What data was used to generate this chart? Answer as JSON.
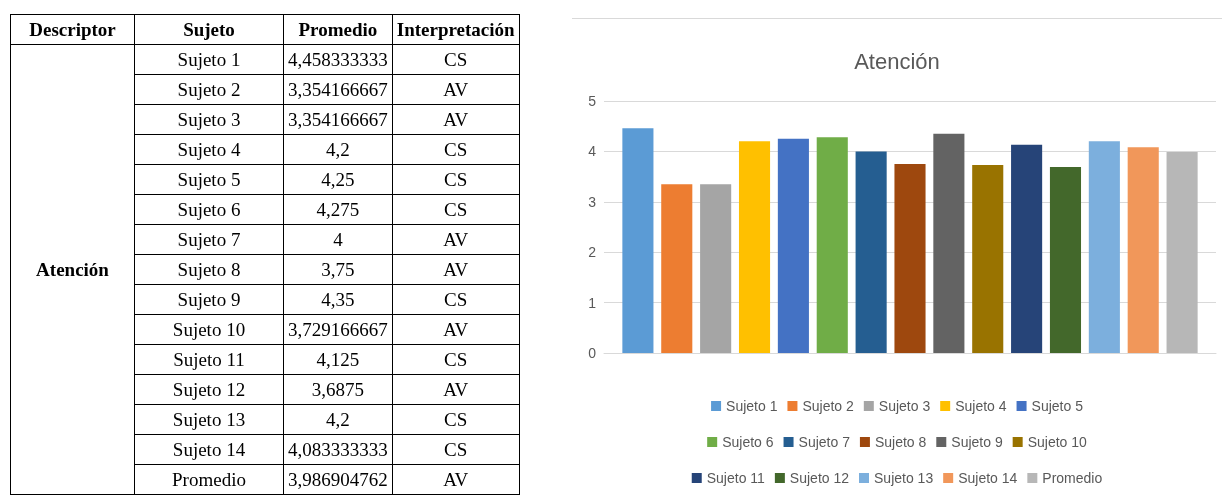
{
  "chart_data": [
    {
      "type": "other",
      "annotations": [
        "Descriptor",
        "Sujeto",
        "Promedio",
        "Interpretación",
        "Atención",
        "Sujeto 1",
        "4,458333333",
        "CS",
        "Sujeto 2",
        "3,354166667",
        "AV",
        "Sujeto 3",
        "3,354166667",
        "AV",
        "Sujeto 4",
        "4,2",
        "CS",
        "Sujeto 5",
        "4,25",
        "CS",
        "Sujeto 6",
        "4,275",
        "CS",
        "Sujeto 7",
        "4",
        "AV",
        "Sujeto 8",
        "3,75",
        "AV",
        "Sujeto 9",
        "4,35",
        "CS",
        "Sujeto 10",
        "3,729166667",
        "AV",
        "Sujeto 11",
        "4,125",
        "CS",
        "Sujeto 12",
        "3,6875",
        "AV",
        "Sujeto 13",
        "4,2",
        "CS",
        "Sujeto 14",
        "4,083333333",
        "CS",
        "Promedio",
        "3,986904762",
        "AV"
      ]
    },
    {
      "type": "bar",
      "title": "Atención",
      "categories": [
        null
      ],
      "series": [
        {
          "name": "Sujeto 1",
          "color": "#5b9bd5",
          "values": [
            4.46
          ]
        },
        {
          "name": "Sujeto 2",
          "color": "#ed7d31",
          "values": [
            3.35
          ]
        },
        {
          "name": "Sujeto 3",
          "color": "#a5a5a5",
          "values": [
            3.35
          ]
        },
        {
          "name": "Sujeto 4",
          "color": "#ffc000",
          "values": [
            4.2
          ]
        },
        {
          "name": "Sujeto 5",
          "color": "#4472c4",
          "values": [
            4.25
          ]
        },
        {
          "name": "Sujeto 6",
          "color": "#70ad47",
          "values": [
            4.28
          ]
        },
        {
          "name": "Sujeto 7",
          "color": "#255e91",
          "values": [
            4
          ]
        },
        {
          "name": "Sujeto 8",
          "color": "#9e480e",
          "values": [
            3.75
          ]
        },
        {
          "name": "Sujeto 9",
          "color": "#636363",
          "values": [
            4.35
          ]
        },
        {
          "name": "Sujeto 10",
          "color": "#997300",
          "values": [
            3.73
          ]
        },
        {
          "name": "Sujeto 11",
          "color": "#264478",
          "values": [
            4.13
          ]
        },
        {
          "name": "Sujeto 12",
          "color": "#43682b",
          "values": [
            3.69
          ]
        },
        {
          "name": "Sujeto 13",
          "color": "#7cafdd",
          "values": [
            4.2
          ]
        },
        {
          "name": "Sujeto 14",
          "color": "#f1975a",
          "values": [
            4.08
          ]
        },
        {
          "name": "Promedio",
          "color": "#b7b7b7",
          "values": [
            3.99
          ]
        }
      ],
      "ylim": [
        0,
        5
      ],
      "yticks": [
        0,
        1,
        2,
        3,
        4,
        5
      ],
      "grid": "y",
      "legend": "bottom"
    }
  ]
}
